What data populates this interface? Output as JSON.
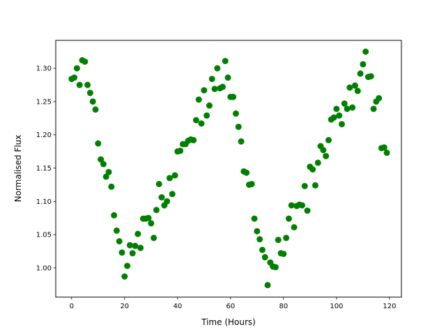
{
  "chart_data": {
    "type": "scatter",
    "xlabel": "Time (Hours)",
    "ylabel": "Normalised Flux",
    "color": "#008000",
    "grid": false,
    "xlim": [
      -6,
      124.5
    ],
    "ylim": [
      0.956,
      1.342
    ],
    "xticks": [
      0,
      20,
      40,
      60,
      80,
      100,
      120
    ],
    "yticks": [
      {
        "value": 1,
        "label": "1.00"
      },
      1.05,
      {
        "value": 1.1,
        "label": "1.10"
      },
      1.15,
      {
        "value": 1.2,
        "label": "1.20"
      },
      1.25,
      {
        "value": 1.3,
        "label": "1.30"
      }
    ],
    "x": [
      0,
      1,
      2,
      3,
      4,
      5,
      6,
      7,
      8,
      9,
      10,
      11,
      12,
      13,
      14,
      15,
      16,
      17,
      18,
      19,
      20,
      21,
      22,
      23,
      24,
      25,
      26,
      27,
      28,
      29,
      30,
      31,
      32,
      33,
      34,
      35,
      36,
      37,
      38,
      39,
      40,
      41,
      42,
      43,
      44,
      45,
      46,
      47,
      48,
      49,
      50,
      51,
      52,
      53,
      54,
      55,
      56,
      57,
      58,
      59,
      60,
      61,
      62,
      63,
      64,
      65,
      66,
      67,
      68,
      69,
      70,
      71,
      72,
      73,
      74,
      75,
      76,
      77,
      78,
      79,
      80,
      81,
      82,
      83,
      84,
      85,
      86,
      87,
      88,
      89,
      90,
      91,
      92,
      93,
      94,
      95,
      96,
      97,
      98,
      99,
      100,
      101,
      102,
      103,
      104,
      105,
      106,
      107,
      108,
      109,
      110,
      111,
      112,
      113,
      114,
      115,
      116,
      117,
      118,
      119
    ],
    "values": [
      1.284,
      1.286,
      1.3,
      1.275,
      1.312,
      1.31,
      1.275,
      1.263,
      1.25,
      1.238,
      1.187,
      1.163,
      1.156,
      1.137,
      1.144,
      1.122,
      1.079,
      1.056,
      1.04,
      1.023,
      0.987,
      1.003,
      1.034,
      1.022,
      1.033,
      1.051,
      1.03,
      1.074,
      1.074,
      1.075,
      1.067,
      1.045,
      1.087,
      1.126,
      1.106,
      1.094,
      1.1,
      1.135,
      1.111,
      1.139,
      1.175,
      1.176,
      1.186,
      1.186,
      1.191,
      1.193,
      1.192,
      1.222,
      1.253,
      1.217,
      1.267,
      1.229,
      1.244,
      1.284,
      1.269,
      1.3,
      1.27,
      1.272,
      1.311,
      1.286,
      1.257,
      1.257,
      1.232,
      1.212,
      1.19,
      1.145,
      1.143,
      1.125,
      1.126,
      1.074,
      1.055,
      1.043,
      1.027,
      1.016,
      0.974,
      1.008,
      1.002,
      1.001,
      1.042,
      1.022,
      1.021,
      1.045,
      1.074,
      1.094,
      1.061,
      1.093,
      1.095,
      1.094,
      1.123,
      1.086,
      1.152,
      1.148,
      1.124,
      1.158,
      1.183,
      1.177,
      1.168,
      1.192,
      1.223,
      1.226,
      1.239,
      1.229,
      1.216,
      1.247,
      1.239,
      1.271,
      1.241,
      1.274,
      1.266,
      1.292,
      1.306,
      1.325,
      1.287,
      1.288,
      1.239,
      1.25,
      1.255,
      1.18,
      1.181,
      1.173
    ]
  }
}
